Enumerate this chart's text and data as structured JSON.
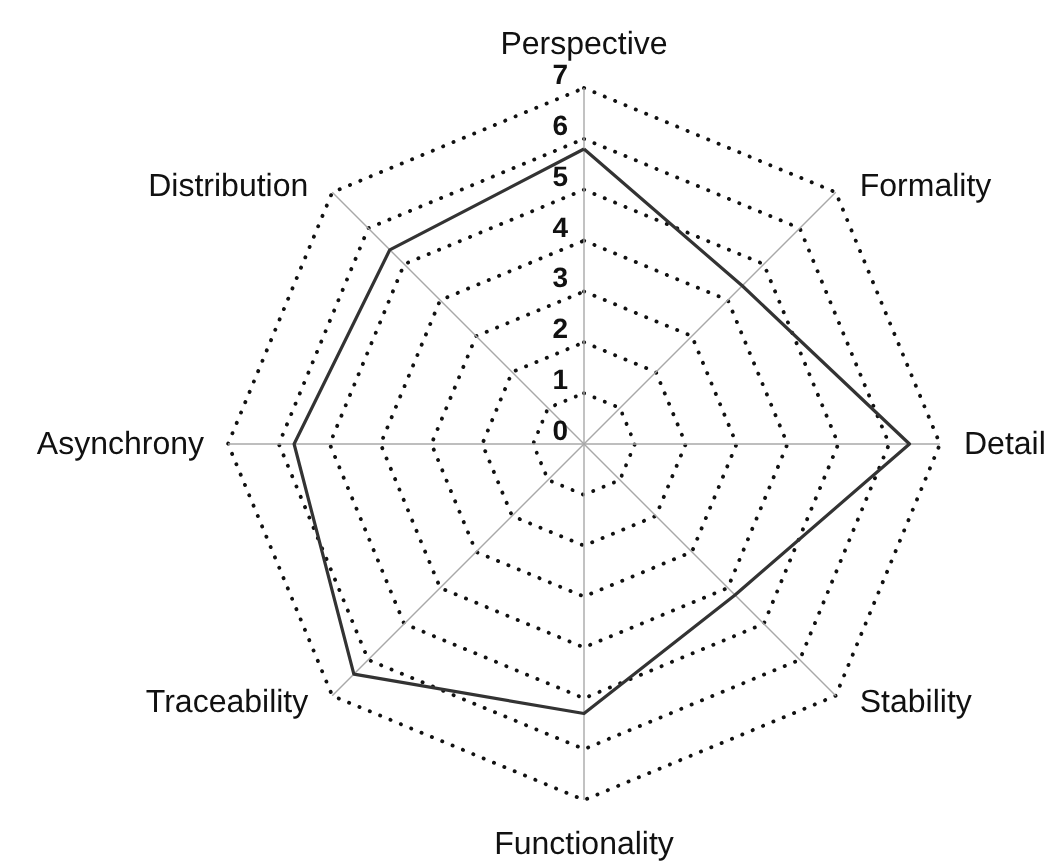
{
  "chart_data": {
    "type": "radar",
    "categories": [
      "Perspective",
      "Formality",
      "Detail",
      "Stability",
      "Functionality",
      "Traceability",
      "Asynchrony",
      "Distribution"
    ],
    "series": [
      {
        "color": "#333333",
        "values": [
          5.8,
          4.4,
          6.4,
          4.2,
          5.3,
          6.4,
          5.7,
          5.4
        ]
      }
    ],
    "ylim": [
      0,
      7
    ],
    "yticks": [
      0,
      1,
      2,
      3,
      4,
      5,
      6,
      7
    ],
    "grid": true
  }
}
